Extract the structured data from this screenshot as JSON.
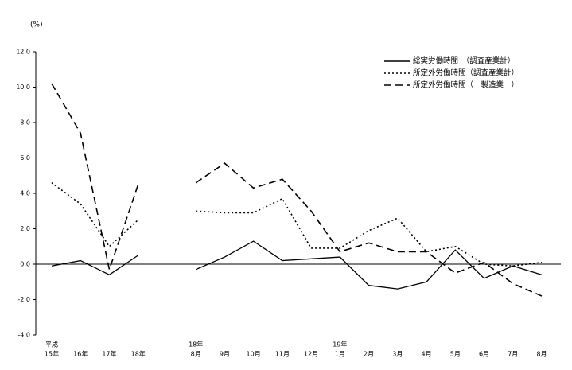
{
  "chart_data": {
    "type": "line",
    "y_unit": "(%)",
    "categories": [
      [
        "平成",
        "15年"
      ],
      [
        "16年"
      ],
      [
        "17年"
      ],
      [
        "18年"
      ],
      null,
      [
        "18年",
        "8月"
      ],
      [
        "9月"
      ],
      [
        "10月"
      ],
      [
        "11月"
      ],
      [
        "12月"
      ],
      [
        "19年",
        "1月"
      ],
      [
        "2月"
      ],
      [
        "3月"
      ],
      [
        "4月"
      ],
      [
        "5月"
      ],
      [
        "6月"
      ],
      [
        "7月"
      ],
      [
        "8月"
      ]
    ],
    "series": [
      {
        "name": "総実労働時間　（調査産業計）",
        "color": "#000000",
        "style": "solid",
        "values": [
          -0.1,
          0.2,
          -0.6,
          0.5,
          null,
          -0.3,
          0.4,
          1.3,
          0.2,
          0.3,
          0.4,
          -1.2,
          -1.4,
          -1.0,
          0.8,
          -0.8,
          -0.1,
          -0.6
        ]
      },
      {
        "name": "所定外労働時間（調査産業計）",
        "color": "#000000",
        "style": "dotted",
        "values": [
          4.6,
          3.4,
          1.0,
          2.5,
          null,
          3.0,
          2.9,
          2.9,
          3.7,
          0.9,
          0.9,
          1.9,
          2.6,
          0.7,
          1.0,
          0.0,
          -0.1,
          0.1
        ]
      },
      {
        "name": "所定外労働時間（　製造業　）",
        "color": "#000000",
        "style": "dashed",
        "values": [
          10.2,
          7.4,
          -0.3,
          4.5,
          null,
          4.6,
          5.7,
          4.3,
          4.8,
          3.0,
          0.7,
          1.2,
          0.7,
          0.7,
          -0.5,
          0.1,
          -1.1,
          -1.8
        ]
      }
    ],
    "ylim": [
      -4,
      12
    ],
    "yticks": [
      {
        "value": -4,
        "label": "-4.0"
      },
      {
        "value": -2,
        "label": "-2.0"
      },
      {
        "value": 0,
        "label": "0.0"
      },
      {
        "value": 2,
        "label": "2.0"
      },
      {
        "value": 4,
        "label": "4.0"
      },
      {
        "value": 6,
        "label": "6.0"
      },
      {
        "value": 8,
        "label": "8.0"
      },
      {
        "value": 10,
        "label": "10.0"
      },
      {
        "value": 12,
        "label": "12.0"
      }
    ],
    "zero_line": 0
  }
}
